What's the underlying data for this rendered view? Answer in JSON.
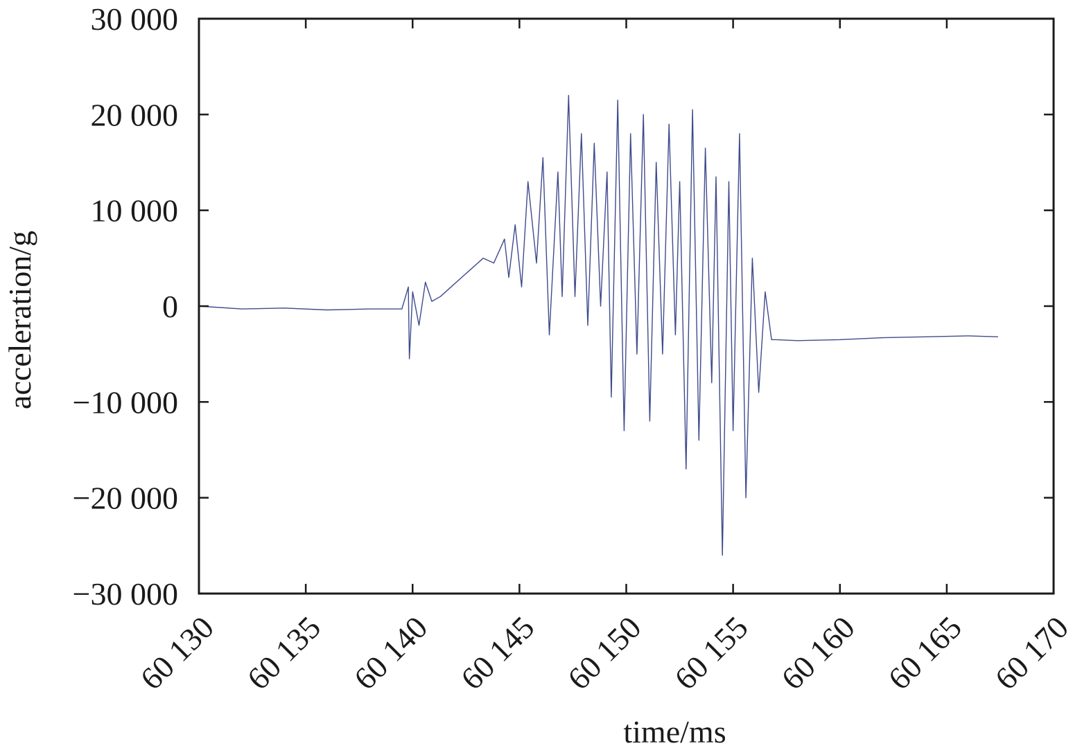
{
  "chart_data": {
    "type": "line",
    "title": "",
    "xlabel": "time/ms",
    "ylabel": "acceleration/g",
    "xlim": [
      60130,
      60170
    ],
    "ylim": [
      -30000,
      30000
    ],
    "grid": false,
    "legend": "none",
    "x_ticks": [
      60130,
      60135,
      60140,
      60145,
      60150,
      60155,
      60160,
      60165,
      60170
    ],
    "x_tick_labels": [
      "60 130",
      "60 135",
      "60 140",
      "60 145",
      "60 150",
      "60 155",
      "60 160",
      "60 165",
      "60 170"
    ],
    "y_ticks": [
      30000,
      20000,
      10000,
      0,
      -10000,
      -20000,
      -30000
    ],
    "y_tick_labels": [
      "30 000",
      "20 000",
      "10 000",
      "0",
      "−10 000",
      "−20 000",
      "−30 000"
    ],
    "series": [
      {
        "color": "#3f4a8c",
        "x": [
          60130.0,
          60132.0,
          60134.0,
          60136.0,
          60138.0,
          60139.5,
          60139.8,
          60139.85,
          60140.0,
          60140.3,
          60140.6,
          60140.9,
          60141.3,
          60141.8,
          60142.3,
          60142.8,
          60143.3,
          60143.8,
          60144.3,
          60144.5,
          60144.8,
          60145.1,
          60145.4,
          60145.8,
          60146.1,
          60146.4,
          60146.8,
          60147.0,
          60147.3,
          60147.6,
          60147.9,
          60148.2,
          60148.5,
          60148.8,
          60149.1,
          60149.3,
          60149.6,
          60149.9,
          60150.2,
          60150.5,
          60150.8,
          60151.1,
          60151.4,
          60151.7,
          60152.0,
          60152.3,
          60152.5,
          60152.8,
          60153.1,
          60153.4,
          60153.7,
          60154.0,
          60154.2,
          60154.5,
          60154.8,
          60155.0,
          60155.3,
          60155.6,
          60155.9,
          60156.2,
          60156.5,
          60156.8,
          60157.0,
          60158.0,
          60160.0,
          60162.0,
          60164.0,
          60166.0,
          60167.4
        ],
        "y": [
          0,
          -300,
          -200,
          -400,
          -300,
          -300,
          2000,
          -5500,
          1500,
          -2000,
          2500,
          500,
          1000,
          2000,
          3000,
          4000,
          5000,
          4500,
          7000,
          3000,
          8500,
          2000,
          13000,
          4500,
          15500,
          -3000,
          14000,
          1000,
          22000,
          1000,
          18000,
          -2000,
          17000,
          0,
          14000,
          -9500,
          21500,
          -13000,
          18000,
          -5000,
          20000,
          -12000,
          15000,
          -5000,
          19000,
          -3000,
          13000,
          -17000,
          20500,
          -14000,
          16500,
          -8000,
          13500,
          -26000,
          13000,
          -13000,
          18000,
          -20000,
          5000,
          -9000,
          1500,
          -3500,
          -3500,
          -3600,
          -3500,
          -3300,
          -3200,
          -3100,
          -3200
        ]
      }
    ]
  }
}
